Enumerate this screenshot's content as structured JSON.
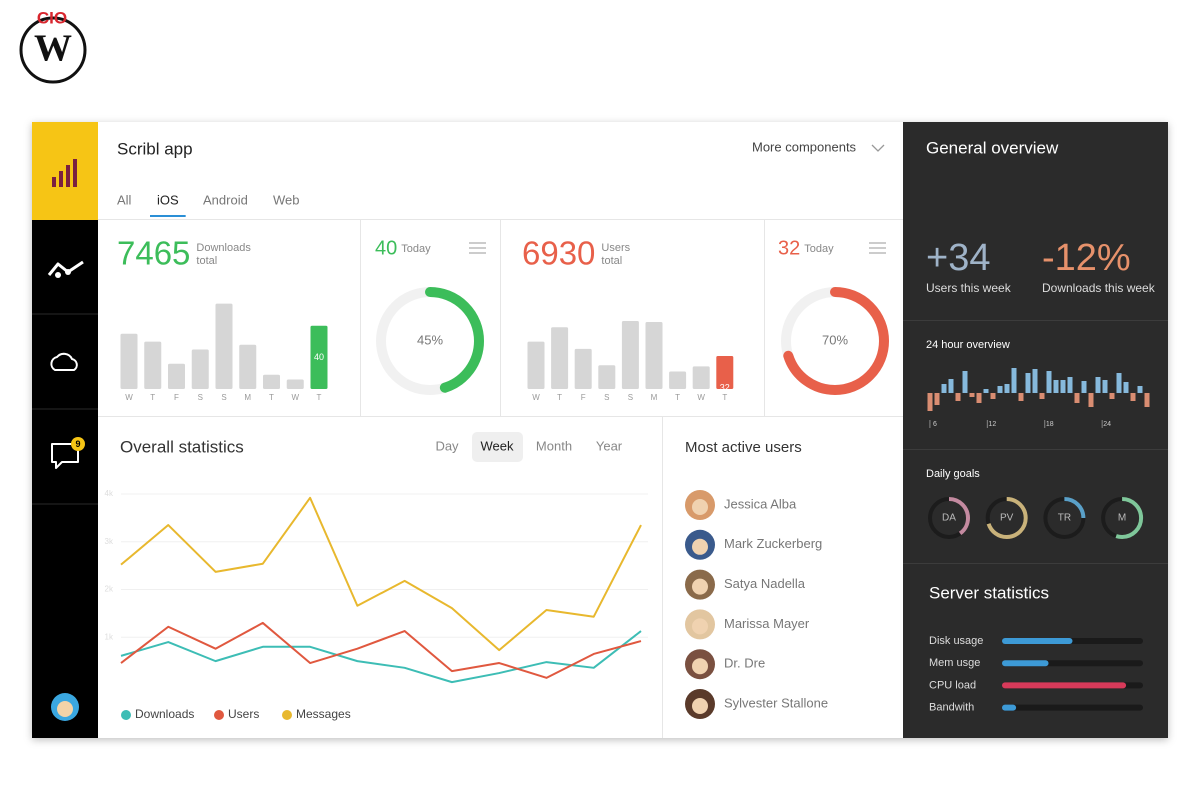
{
  "logo": {
    "brand": "CIO",
    "letter": "W"
  },
  "sidebar": {
    "badge": "9"
  },
  "header": {
    "title": "Scribl app",
    "more": "More components",
    "tabs": [
      "All",
      "iOS",
      "Android",
      "Web"
    ],
    "active_tab": 1
  },
  "cards": [
    {
      "total": 7465,
      "total_label": [
        "Downloads",
        "total"
      ],
      "today": 40,
      "today_label": "Today",
      "color": "#3cbd5a"
    },
    {
      "total": 6930,
      "total_label": [
        "Users",
        "total"
      ],
      "today": 32,
      "today_label": "Today",
      "color": "#e8604a"
    }
  ],
  "stats_tabs": {
    "tabs": [
      "Day",
      "Week",
      "Month",
      "Year"
    ],
    "active_tab": 1
  },
  "users": {
    "title": "Most active users",
    "names": [
      "Jessica Alba",
      "Mark Zuckerberg",
      "Satya Nadella",
      "Marissa Mayer",
      "Dr. Dre",
      "Sylvester Stallone"
    ]
  },
  "overview": {
    "title": "General overview",
    "stats": [
      {
        "value": "+34",
        "label": "Users this week",
        "color": "#9fb3c8"
      },
      {
        "value": "-12%",
        "label": "Downloads this week",
        "color": "#e6916b"
      }
    ]
  },
  "chart_data": [
    {
      "type": "bar",
      "categories": [
        "W",
        "T",
        "F",
        "S",
        "S",
        "M",
        "T",
        "W",
        "T"
      ],
      "values": [
        35,
        30,
        16,
        25,
        54,
        28,
        9,
        6,
        40
      ],
      "color": "#d6d6d6",
      "highlight": 8,
      "highlight_color": "#3cbd5a"
    },
    {
      "type": "donut",
      "values": [
        45
      ],
      "value_labels": [
        "45%"
      ],
      "color": "#3cbd5a"
    },
    {
      "type": "bar",
      "categories": [
        "W",
        "T",
        "F",
        "S",
        "S",
        "M",
        "T",
        "W",
        "T"
      ],
      "values": [
        46,
        60,
        39,
        23,
        66,
        65,
        17,
        22,
        32
      ],
      "color": "#d6d6d6",
      "highlight": 8,
      "highlight_color": "#e8604a"
    },
    {
      "type": "donut",
      "values": [
        70
      ],
      "value_labels": [
        "70%"
      ],
      "color": "#e8604a"
    },
    {
      "type": "line",
      "title": "Overall statistics",
      "ylim": [
        0,
        4000
      ],
      "yticks": [
        {
          "value": 1000,
          "label": "1k"
        },
        {
          "value": 2000,
          "label": "2k"
        },
        {
          "value": 3000,
          "label": "3k"
        },
        {
          "value": 4000,
          "label": "4k"
        }
      ],
      "grid": true,
      "legend": "bottom",
      "series": [
        {
          "name": "Downloads",
          "color": "#3dbdb5",
          "values": [
            610,
            900,
            500,
            800,
            800,
            500,
            360,
            60,
            250,
            480,
            360,
            1130
          ]
        },
        {
          "name": "Users",
          "color": "#e0583f",
          "values": [
            460,
            1220,
            760,
            1300,
            460,
            760,
            1130,
            290,
            460,
            150,
            650,
            920
          ]
        },
        {
          "name": "Messages",
          "color": "#e8b82e",
          "values": [
            2520,
            3350,
            2370,
            2540,
            3920,
            1660,
            2180,
            1610,
            730,
            1570,
            1430,
            3350
          ]
        }
      ]
    },
    {
      "type": "split-bar",
      "title": "24 hour overview",
      "values": [
        -18,
        -12,
        9,
        14,
        -8,
        22,
        -4,
        -10,
        4,
        -6,
        7,
        9,
        25,
        -8,
        20,
        24,
        -6,
        22,
        13,
        13,
        16,
        -10,
        12,
        -14,
        16,
        13,
        -6,
        20,
        11,
        -8,
        7,
        -14
      ],
      "positive_color": "#86b9dc",
      "negative_color": "#d98d72",
      "xlim": [
        5.8,
        29
      ],
      "xticks": [
        6,
        12,
        18,
        24
      ]
    },
    {
      "type": "ring",
      "title": "Daily goals",
      "categories": [
        "DA",
        "PV",
        "TR",
        "M"
      ],
      "values": [
        40,
        70,
        25,
        55
      ],
      "colors": [
        "#c48aa0",
        "#c9b27a",
        "#5aa0c8",
        "#7fc79a"
      ]
    },
    {
      "type": "progress",
      "title": "Server statistics",
      "categories": [
        "Disk usage",
        "Mem usge",
        "CPU load",
        "Bandwith"
      ],
      "values": [
        50,
        33,
        88,
        10
      ],
      "xlim": [
        0,
        100
      ],
      "colors": [
        "#3d9ad6",
        "#3d9ad6",
        "#d83a5a",
        "#3d9ad6"
      ]
    }
  ]
}
